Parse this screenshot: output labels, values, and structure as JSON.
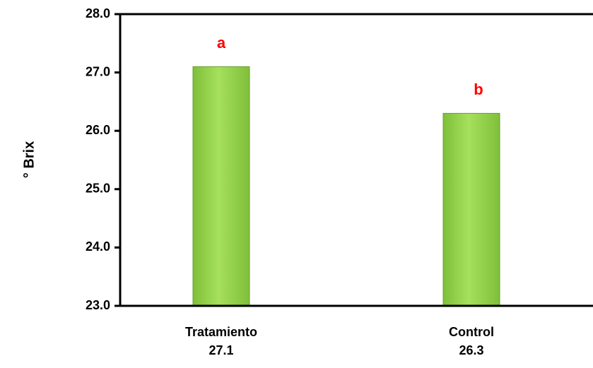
{
  "chart_data": {
    "type": "bar",
    "y_label": "° Brix",
    "categories": [
      "Tratamiento",
      "Control"
    ],
    "values": [
      27.1,
      26.3
    ],
    "annotations": [
      "a",
      "b"
    ],
    "color": "#92d050",
    "annotation_color": "#ff0000",
    "ylim": [
      23,
      28
    ],
    "yticks": [
      {
        "value": 23,
        "label": "23.0"
      },
      {
        "value": 24,
        "label": "24.0"
      },
      {
        "value": 25,
        "label": "25.0"
      },
      {
        "value": 26,
        "label": "26.0"
      },
      {
        "value": 27,
        "label": "27.0"
      },
      {
        "value": 28,
        "label": "28.0"
      }
    ]
  }
}
